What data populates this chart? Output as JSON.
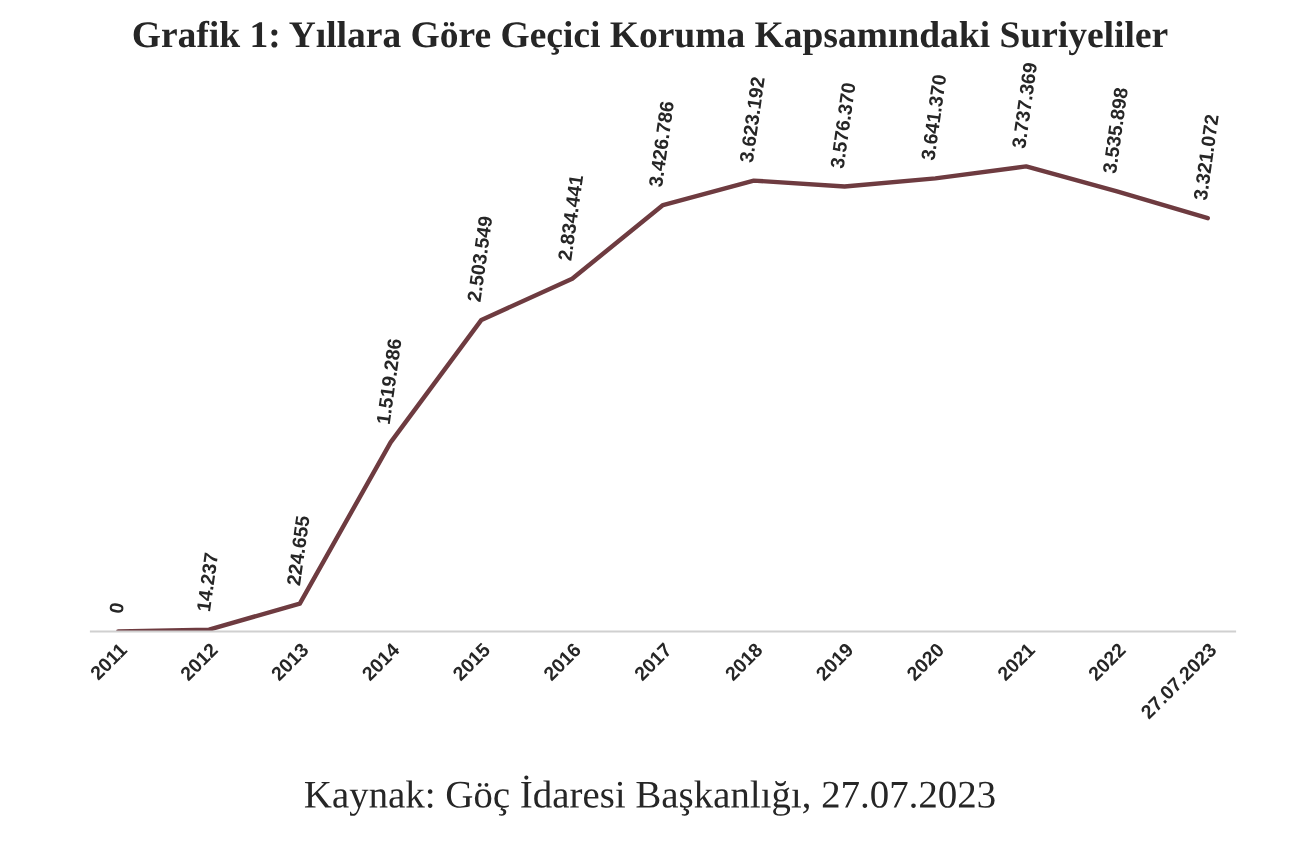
{
  "chart_data": {
    "type": "line",
    "title": "Grafik 1: Yıllara Göre Geçici Koruma Kapsamındaki Suriyeliler",
    "categories": [
      "2011",
      "2012",
      "2013",
      "2014",
      "2015",
      "2016",
      "2017",
      "2018",
      "2019",
      "2020",
      "2021",
      "2022",
      "27.07.2023"
    ],
    "series": [
      {
        "color": "#6e3b40",
        "values": [
          0,
          14237,
          224655,
          1519286,
          2503549,
          2834441,
          3426786,
          3623192,
          3576370,
          3641370,
          3737369,
          3535898,
          3321072
        ],
        "value_labels": [
          "0",
          "14.237",
          "224.655",
          "1.519.286",
          "2.503.549",
          "2.834.441",
          "3.426.786",
          "3.623.192",
          "3.576.370",
          "3.641.370",
          "3.737.369",
          "3.535.898",
          "3.321.072"
        ]
      }
    ],
    "tick_labels": "x",
    "grid": false,
    "legend": false,
    "marker": "none",
    "line_style": "solid",
    "annotations": [
      "Kaynak: Göç İdaresi Başkanlığı, 27.07.2023"
    ]
  }
}
